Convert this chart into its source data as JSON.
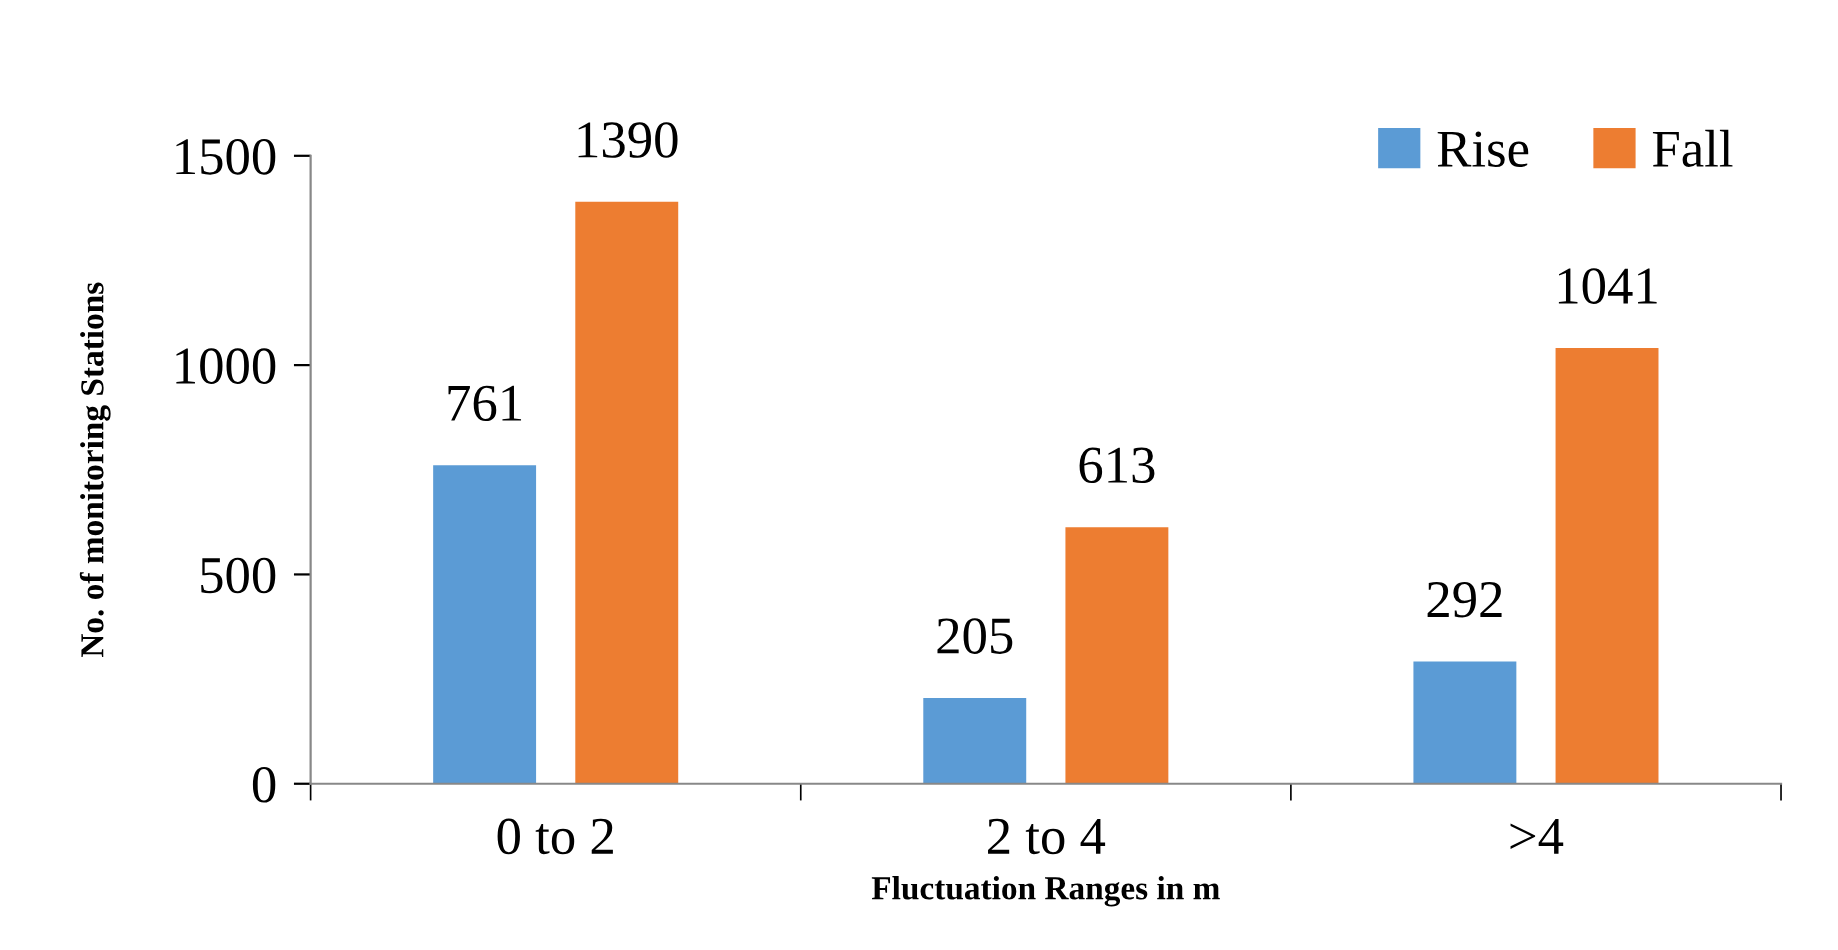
{
  "chart_data": {
    "type": "bar",
    "xlabel": "Fluctuation Ranges in m",
    "ylabel": "No. of monitoring Stations",
    "categories": [
      "0 to 2",
      "2 to 4",
      ">4"
    ],
    "series": [
      {
        "name": "Rise",
        "color": "#5b9bd5",
        "values": [
          761,
          205,
          292
        ]
      },
      {
        "name": "Fall",
        "color": "#ed7d31",
        "values": [
          1390,
          613,
          1041
        ]
      }
    ],
    "ylim": [
      0,
      1500
    ],
    "yticks": [
      0,
      500,
      1000,
      1500
    ],
    "grid": false,
    "legend": "top right",
    "data_labels": true
  }
}
